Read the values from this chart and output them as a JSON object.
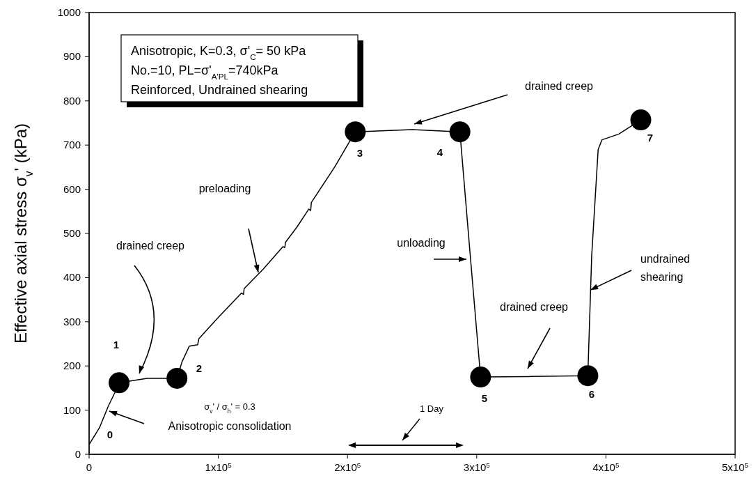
{
  "chart_data": {
    "type": "line",
    "ylabel": "Effective axial stress σ$_{v}$' (kPa)",
    "xlim": [
      0,
      500000
    ],
    "ylim": [
      0,
      1000
    ],
    "xticks": [
      0,
      {
        "value": 100000,
        "label": "1x10$^{5}$"
      },
      {
        "value": 200000,
        "label": "2x10$^{5}$"
      },
      {
        "value": 300000,
        "label": "3x10$^{5}$"
      },
      {
        "value": 400000,
        "label": "4x10$^{5}$"
      },
      {
        "value": 500000,
        "label": "5x10$^{5}$"
      }
    ],
    "yticks": [
      0,
      100,
      200,
      300,
      400,
      500,
      600,
      700,
      800,
      900,
      1000
    ],
    "series": [
      {
        "color": "#000000",
        "marker": "none",
        "line_style": "solid",
        "x": [
          0,
          8000,
          15000,
          20000,
          23200,
          45000,
          68000,
          72000,
          77600,
          84000,
          85000,
          100000,
          118000,
          119500,
          120000,
          135000,
          150000,
          151500,
          152000,
          161000,
          170000,
          171500,
          172000,
          190000,
          206000,
          250000,
          287000,
          295000,
          303000,
          340000,
          386000,
          389000,
          394000,
          397000,
          410000,
          427000
        ],
        "values": [
          22,
          60,
          110,
          140,
          162,
          172,
          172,
          210,
          245,
          248,
          262,
          310,
          365,
          362,
          375,
          420,
          470,
          468,
          480,
          515,
          555,
          552,
          570,
          650,
          730,
          735,
          730,
          450,
          175,
          176,
          178,
          450,
          690,
          712,
          725,
          757
        ]
      },
      {
        "type": "scatter",
        "color": "#000000",
        "marker": "circle",
        "x": [
          23200,
          68000,
          206000,
          287000,
          303000,
          386000,
          427000
        ],
        "values": [
          162,
          172,
          730,
          730,
          175,
          178,
          757
        ]
      }
    ],
    "annotations": [
      "Anisotropic, K=0.3, σ'$_{C}$= 50 kPa",
      "No.=10, PL=σ'$_{A'PL}$=740kPa",
      "Reinforced, Undrained shearing",
      "0",
      "1",
      "2",
      "3",
      "4",
      "5",
      "6",
      "7",
      "drained creep",
      "preloading",
      "drained creep",
      "unloading",
      {
        "text": "undrained shearing",
        "x": 388000,
        "y": 372
      },
      "drained creep",
      "Anisotropic consolidation",
      "σ$_{v}$' / σ$_{h}$' = 0.3",
      "1 Day"
    ]
  }
}
